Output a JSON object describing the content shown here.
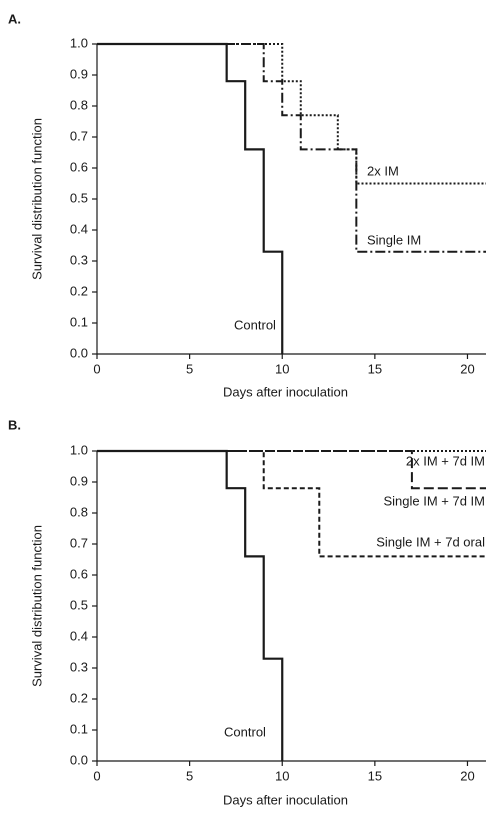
{
  "chart_data": [
    {
      "type": "step",
      "title": "A.",
      "xlabel": "Days after inoculation",
      "ylabel": "Survival distribution function",
      "xlim": [
        0,
        21
      ],
      "xticks": [
        0,
        5,
        10,
        15,
        20
      ],
      "ylim": [
        0,
        1
      ],
      "yticks": [
        {
          "value": 0,
          "label": "0.0"
        },
        0.1,
        0.2,
        0.3,
        0.4,
        0.5,
        0.6,
        0.7,
        0.8,
        0.9,
        {
          "value": 1,
          "label": "1.0"
        }
      ],
      "series": [
        {
          "name": "Control",
          "color": "#1a1a1a",
          "style": "solid",
          "x": [
            0,
            7,
            8,
            9,
            10
          ],
          "values": [
            1,
            0.88,
            0.66,
            0.33,
            0
          ]
        },
        {
          "name": "Single IM",
          "color": "#1a1a1a",
          "style": "dashdot",
          "x": [
            0,
            9,
            10,
            11,
            14,
            21
          ],
          "values": [
            1,
            0.88,
            0.77,
            0.66,
            0.33,
            0.33
          ]
        },
        {
          "name": "2x IM",
          "color": "#1a1a1a",
          "style": "dotted",
          "x": [
            0,
            10,
            11,
            13,
            14,
            21
          ],
          "values": [
            1,
            0.88,
            0.77,
            0.66,
            0.55,
            0.55
          ]
        }
      ]
    },
    {
      "type": "step",
      "title": "B.",
      "xlabel": "Days after inoculation",
      "ylabel": "Survival distribution function",
      "xlim": [
        0,
        21
      ],
      "xticks": [
        0,
        5,
        10,
        15,
        20
      ],
      "ylim": [
        0,
        1
      ],
      "yticks": [
        {
          "value": 0,
          "label": "0.0"
        },
        0.1,
        0.2,
        0.3,
        0.4,
        0.5,
        0.6,
        0.7,
        0.8,
        0.9,
        {
          "value": 1,
          "label": "1.0"
        }
      ],
      "series": [
        {
          "name": "Control",
          "color": "#1a1a1a",
          "style": "solid",
          "x": [
            0,
            7,
            8,
            9,
            10
          ],
          "values": [
            1,
            0.88,
            0.66,
            0.33,
            0
          ]
        },
        {
          "name": "2x IM + 7d IM",
          "color": "#1a1a1a",
          "style": "dotted",
          "x": [
            0,
            21
          ],
          "values": [
            1,
            1
          ]
        },
        {
          "name": "Single IM + 7d IM",
          "color": "#1a1a1a",
          "style": "longdash",
          "x": [
            0,
            17,
            21
          ],
          "values": [
            1,
            0.88,
            0.88
          ]
        },
        {
          "name": "Single IM + 7d oral",
          "color": "#1a1a1a",
          "style": "dashed",
          "x": [
            0,
            9,
            12,
            21
          ],
          "values": [
            1,
            0.88,
            0.66,
            0.66
          ]
        }
      ]
    }
  ]
}
